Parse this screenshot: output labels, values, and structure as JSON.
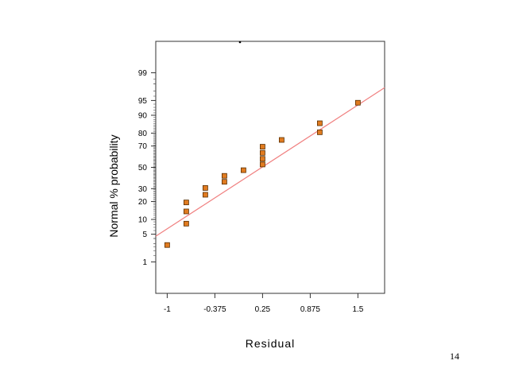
{
  "page_number": "14",
  "chart_data": {
    "type": "scatter",
    "title": "",
    "xlabel": "Residual",
    "ylabel": "Normal % probability",
    "xlim": [
      -1.15,
      1.85
    ],
    "x_ticks": [
      -1,
      -0.375,
      0.25,
      0.875,
      1.5
    ],
    "x_tick_labels": [
      "-1",
      "-0.375",
      "0.25",
      "0.875",
      "1.5"
    ],
    "y_scale": "normal-probability",
    "y_ticks": [
      1,
      5,
      10,
      20,
      30,
      50,
      70,
      80,
      90,
      95,
      99
    ],
    "y_tick_labels": [
      "1",
      "5",
      "10",
      "20",
      "30",
      "50",
      "70",
      "80",
      "90",
      "95",
      "99"
    ],
    "grid": false,
    "points": [
      {
        "x": -1.0,
        "y": 2.8
      },
      {
        "x": -0.75,
        "y": 8.3
      },
      {
        "x": -0.75,
        "y": 13.9
      },
      {
        "x": -0.75,
        "y": 19.4
      },
      {
        "x": -0.5,
        "y": 25.0
      },
      {
        "x": -0.5,
        "y": 30.6
      },
      {
        "x": -0.25,
        "y": 36.1
      },
      {
        "x": -0.25,
        "y": 41.7
      },
      {
        "x": 0.0,
        "y": 47.2
      },
      {
        "x": 0.25,
        "y": 52.8
      },
      {
        "x": 0.25,
        "y": 58.3
      },
      {
        "x": 0.25,
        "y": 63.9
      },
      {
        "x": 0.25,
        "y": 69.4
      },
      {
        "x": 0.5,
        "y": 75.0
      },
      {
        "x": 1.0,
        "y": 80.6
      },
      {
        "x": 1.0,
        "y": 86.1
      },
      {
        "x": 1.5,
        "y": 94.4
      }
    ],
    "fit_line": {
      "x": [
        -1.15,
        1.85
      ],
      "y": [
        4.5,
        97.5
      ]
    },
    "colors": {
      "point_fill": "#e07b20",
      "point_stroke": "#5a2e00",
      "fit_line": "#f08080",
      "frame": "#333333"
    }
  }
}
